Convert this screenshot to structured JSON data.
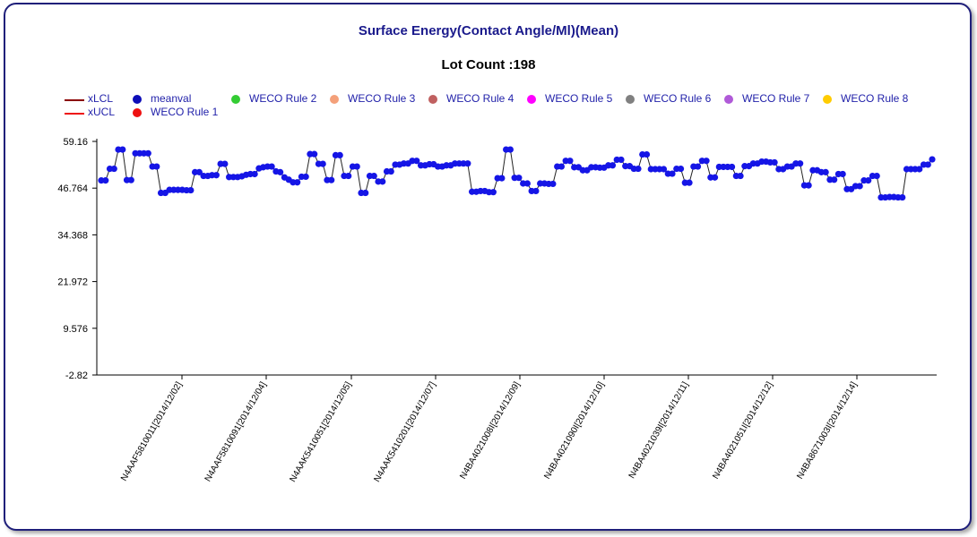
{
  "chart_data": {
    "type": "line",
    "title": "Surface Energy(Contact Angle/Ml)(Mean)",
    "subtitle": "Lot Count :198",
    "ylim": [
      -2.82,
      59.16
    ],
    "y_ticks": [
      "59.16",
      "46.764",
      "34.368",
      "21.972",
      "9.576",
      "-2.82"
    ],
    "y_tick_values": [
      59.16,
      46.764,
      34.368,
      21.972,
      9.576,
      -2.82
    ],
    "x_tick_labels": [
      "N4AAF5810011[2014/12/02]",
      "N4AAF5810091[2014/12/04]",
      "N4AAK5410051[2014/12/05]",
      "N4AAK5410201[2014/12/07]",
      "N4BA4021008I[2014/12/09]",
      "N4BA4021090I[2014/12/10]",
      "N4BA4021039I[2014/12/11]",
      "N4BA4021051I[2014/12/12]",
      "N4BA8671003I[2014/12/14]"
    ],
    "legend": [
      {
        "name": "xLCL",
        "kind": "line",
        "color": "#8b0000"
      },
      {
        "name": "xUCL",
        "kind": "line",
        "color": "#ee1111"
      },
      {
        "name": "meanval",
        "kind": "dot",
        "color": "#0d0db8"
      },
      {
        "name": "WECO Rule 1",
        "kind": "dot",
        "color": "#ee1111"
      },
      {
        "name": "WECO Rule 2",
        "kind": "dot",
        "color": "#33cc33"
      },
      {
        "name": "WECO Rule 3",
        "kind": "dot",
        "color": "#f4a07a"
      },
      {
        "name": "WECO Rule 4",
        "kind": "dot",
        "color": "#c06060"
      },
      {
        "name": "WECO Rule 5",
        "kind": "dot",
        "color": "#ff00ff"
      },
      {
        "name": "WECO Rule 6",
        "kind": "dot",
        "color": "#808080"
      },
      {
        "name": "WECO Rule 7",
        "kind": "dot",
        "color": "#b05ad8"
      },
      {
        "name": "WECO Rule 8",
        "kind": "dot",
        "color": "#ffcc00"
      }
    ],
    "series": [
      {
        "name": "meanval",
        "color": "#1515e6",
        "values": [
          48.8,
          48.8,
          51.9,
          51.9,
          57.0,
          57.0,
          48.9,
          48.9,
          56.0,
          56.0,
          56.0,
          56.0,
          52.5,
          52.5,
          45.5,
          45.5,
          46.3,
          46.3,
          46.3,
          46.3,
          46.2,
          46.2,
          51.0,
          51.0,
          50.0,
          50.0,
          50.2,
          50.2,
          53.2,
          53.2,
          49.7,
          49.7,
          49.7,
          49.9,
          50.3,
          50.5,
          50.5,
          52.0,
          52.3,
          52.5,
          52.5,
          51.2,
          51.0,
          49.6,
          49.0,
          48.3,
          48.3,
          49.8,
          49.8,
          55.8,
          55.8,
          53.2,
          53.2,
          48.9,
          48.9,
          55.5,
          55.5,
          50.0,
          50.0,
          52.5,
          52.5,
          45.5,
          45.5,
          50.0,
          50.0,
          48.5,
          48.5,
          51.2,
          51.2,
          53.0,
          53.0,
          53.3,
          53.3,
          54.0,
          54.0,
          52.8,
          52.8,
          53.1,
          53.1,
          52.5,
          52.5,
          52.8,
          52.8,
          53.3,
          53.3,
          53.3,
          53.3,
          45.8,
          45.8,
          46.0,
          46.0,
          45.7,
          45.7,
          49.4,
          49.4,
          57.0,
          57.0,
          49.5,
          49.5,
          48.0,
          48.0,
          46.0,
          46.0,
          48.0,
          48.0,
          47.9,
          47.9,
          52.5,
          52.5,
          54.0,
          54.0,
          52.3,
          52.3,
          51.5,
          51.5,
          52.3,
          52.3,
          52.2,
          52.2,
          52.8,
          52.8,
          54.3,
          54.3,
          52.6,
          52.6,
          51.9,
          51.9,
          55.7,
          55.7,
          51.8,
          51.8,
          51.8,
          51.8,
          50.6,
          50.6,
          51.9,
          51.9,
          48.2,
          48.2,
          52.5,
          52.5,
          54.0,
          54.0,
          49.6,
          49.6,
          52.4,
          52.4,
          52.4,
          52.4,
          50.0,
          50.0,
          52.6,
          52.6,
          53.3,
          53.3,
          53.8,
          53.8,
          53.6,
          53.6,
          51.8,
          51.8,
          52.5,
          52.5,
          53.3,
          53.3,
          47.5,
          47.5,
          51.5,
          51.5,
          51.0,
          51.0,
          49.0,
          49.0,
          50.5,
          50.5,
          46.5,
          46.5,
          47.3,
          47.3,
          48.8,
          48.8,
          50.0,
          50.0,
          44.3,
          44.3,
          44.4,
          44.4,
          44.3,
          44.3,
          51.8,
          51.8,
          51.8,
          51.8,
          53.0,
          53.0,
          54.4
        ]
      }
    ]
  }
}
